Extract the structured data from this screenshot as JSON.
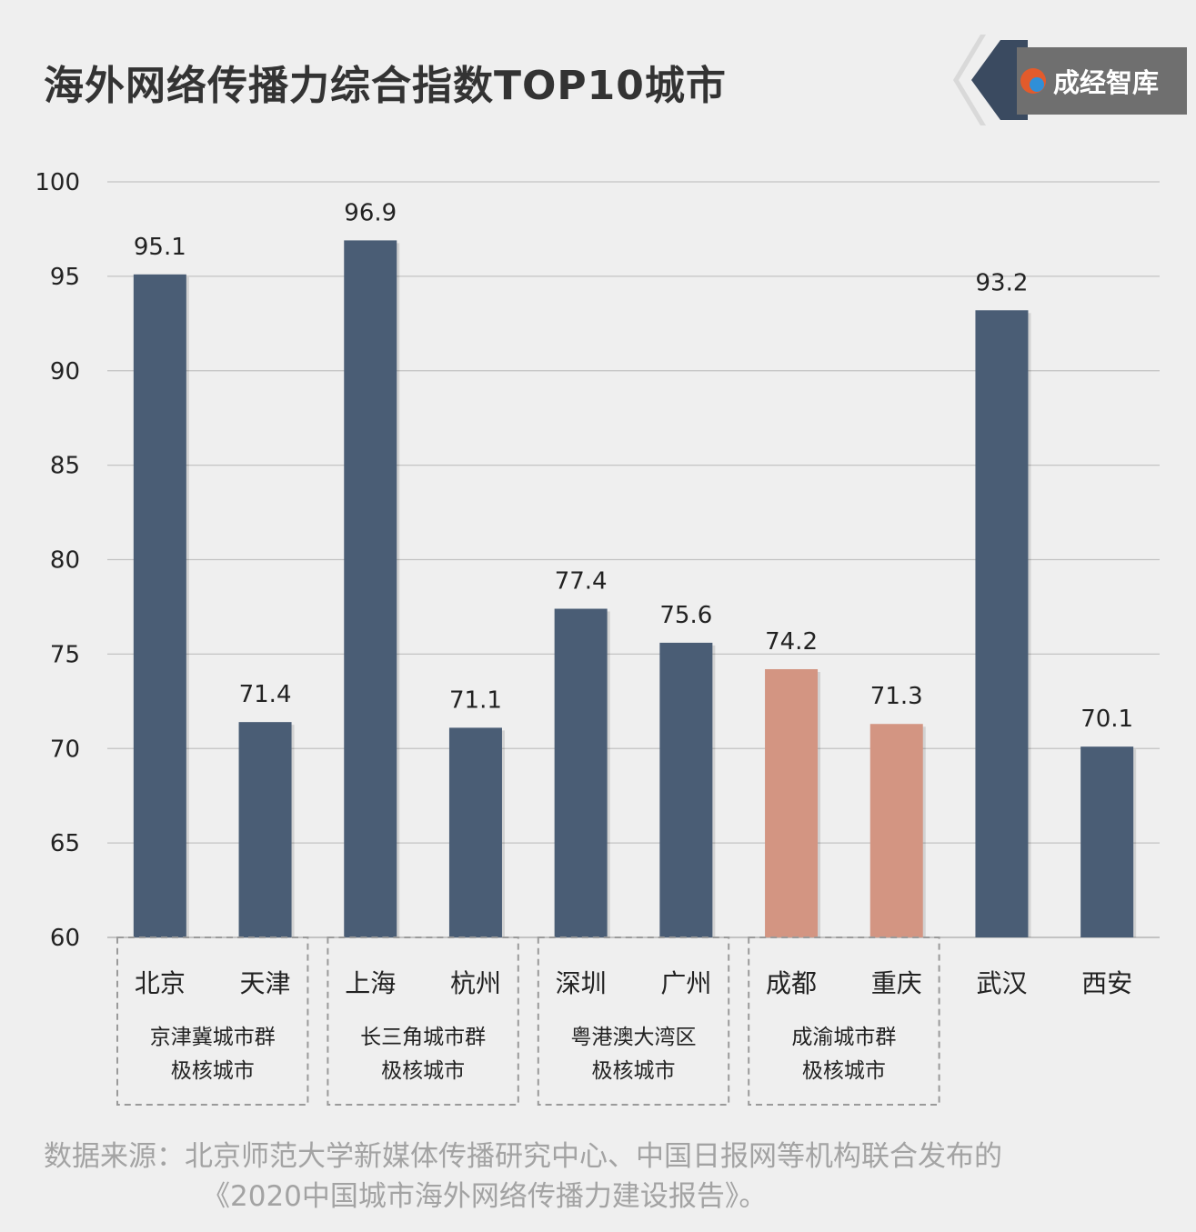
{
  "title": "海外网络传播力综合指数TOP10城市",
  "brand": {
    "name": "成经智库"
  },
  "colors": {
    "primary_bar": "#4a5d75",
    "highlight_bar": "#d39582",
    "grid": "#c3c3c3",
    "background": "#efefef"
  },
  "chart_data": {
    "type": "bar",
    "categories": [
      "北京",
      "天津",
      "上海",
      "杭州",
      "深圳",
      "广州",
      "成都",
      "重庆",
      "武汉",
      "西安"
    ],
    "values": [
      95.1,
      71.4,
      96.9,
      71.1,
      77.4,
      75.6,
      74.2,
      71.3,
      93.2,
      70.1
    ],
    "value_labels": [
      "95.1",
      "71.4",
      "96.9",
      "71.1",
      "77.4",
      "75.6",
      "74.2",
      "71.3",
      "93.2",
      "70.1"
    ],
    "highlighted": [
      "成都",
      "重庆"
    ],
    "ylim": [
      60,
      100
    ],
    "yticks": [
      "60",
      "65",
      "70",
      "75",
      "80",
      "85",
      "90",
      "95",
      "100"
    ],
    "grid": true,
    "groups": [
      {
        "lines": [
          "京津冀城市群",
          "极核城市"
        ],
        "cities": [
          "北京",
          "天津"
        ]
      },
      {
        "lines": [
          "长三角城市群",
          "极核城市"
        ],
        "cities": [
          "上海",
          "杭州"
        ]
      },
      {
        "lines": [
          "粤港澳大湾区",
          "极核城市"
        ],
        "cities": [
          "深圳",
          "广州"
        ]
      },
      {
        "lines": [
          "成渝城市群",
          "极核城市"
        ],
        "cities": [
          "成都",
          "重庆"
        ]
      }
    ]
  },
  "source": {
    "line1": "数据来源：北京师范大学新媒体传播研究中心、中国日报网等机构联合发布的",
    "line2": "《2020中国城市海外网络传播力建设报告》。"
  }
}
